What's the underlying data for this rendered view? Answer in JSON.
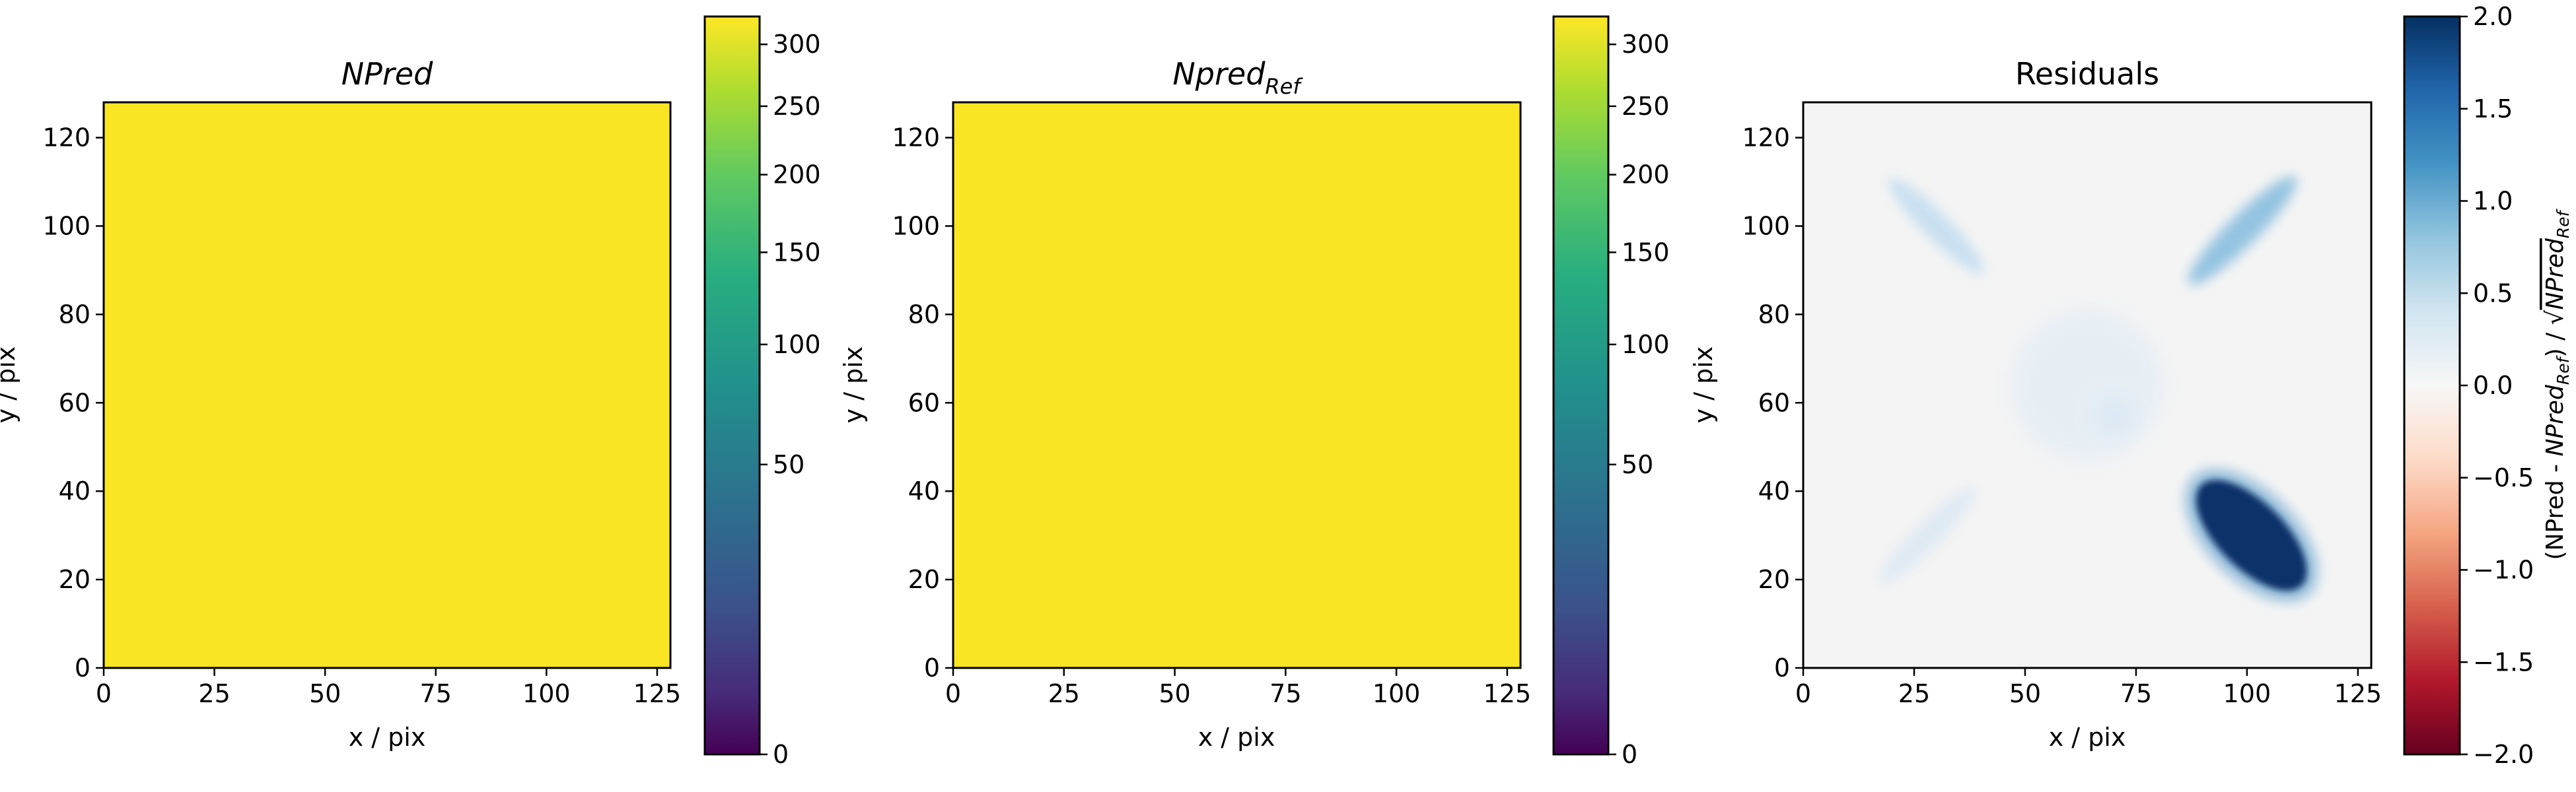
{
  "figure": {
    "background": "#ffffff"
  },
  "chart_data": [
    {
      "type": "heatmap",
      "title": "NPred",
      "xlabel": "x / pix",
      "ylabel": "y / pix",
      "xlim": [
        0,
        128
      ],
      "ylim": [
        0,
        128
      ],
      "xticks": [
        0,
        25,
        50,
        75,
        100,
        125
      ],
      "yticks": [
        0,
        20,
        40,
        60,
        80,
        100,
        120
      ],
      "colormap": "viridis",
      "fill_color": "#f9e521",
      "colorbar": {
        "scale": "sqrt",
        "range": [
          0,
          324
        ],
        "ticks": [
          0,
          50,
          100,
          150,
          200,
          250,
          300
        ],
        "label": ""
      }
    },
    {
      "type": "heatmap",
      "title": "Npred",
      "title_subscript": "Ref",
      "xlabel": "x / pix",
      "ylabel": "y / pix",
      "xlim": [
        0,
        128
      ],
      "ylim": [
        0,
        128
      ],
      "xticks": [
        0,
        25,
        50,
        75,
        100,
        125
      ],
      "yticks": [
        0,
        20,
        40,
        60,
        80,
        100,
        120
      ],
      "colormap": "viridis",
      "fill_color": "#f9e521",
      "colorbar": {
        "scale": "sqrt",
        "range": [
          0,
          324
        ],
        "ticks": [
          0,
          50,
          100,
          150,
          200,
          250,
          300
        ],
        "label": ""
      }
    },
    {
      "type": "heatmap",
      "title": "Residuals",
      "xlabel": "x / pix",
      "ylabel": "y / pix",
      "xlim": [
        0,
        128
      ],
      "ylim": [
        0,
        128
      ],
      "xticks": [
        0,
        25,
        50,
        75,
        100,
        125
      ],
      "yticks": [
        0,
        20,
        40,
        60,
        80,
        100,
        120
      ],
      "colormap": "RdBu",
      "background_color": "#f4f4f4",
      "features": [
        {
          "shape": "ellipse",
          "cx": 101,
          "cy": 30,
          "length": 32,
          "width": 15,
          "angle_deg": -45,
          "value": 2.0,
          "color": "#08306b"
        },
        {
          "shape": "ellipse",
          "cx": 99,
          "cy": 99,
          "length": 34,
          "width": 7,
          "angle_deg": 45,
          "value": 0.7,
          "color": "#8ec1e0"
        },
        {
          "shape": "ellipse",
          "cx": 30,
          "cy": 100,
          "length": 30,
          "width": 6,
          "angle_deg": -45,
          "value": 0.3,
          "color": "#c6def0"
        },
        {
          "shape": "ellipse",
          "cx": 28,
          "cy": 30,
          "length": 30,
          "width": 6,
          "angle_deg": 45,
          "value": 0.15,
          "color": "#dde9f3"
        },
        {
          "shape": "ellipse",
          "cx": 64,
          "cy": 64,
          "length": 34,
          "width": 34,
          "angle_deg": 0,
          "value": 0.1,
          "color": "#e6eef5"
        },
        {
          "shape": "ellipse",
          "cx": 70,
          "cy": 57,
          "length": 9,
          "width": 9,
          "angle_deg": 0,
          "value": 0.15,
          "color": "#dce9f4"
        }
      ],
      "colorbar": {
        "scale": "linear",
        "range": [
          -2.0,
          2.0
        ],
        "ticks": [
          -2.0,
          -1.5,
          -1.0,
          -0.5,
          0.0,
          0.5,
          1.0,
          1.5,
          2.0
        ],
        "tick_labels": [
          "−2.0",
          "−1.5",
          "−1.0",
          "−0.5",
          "0.0",
          "0.5",
          "1.0",
          "1.5",
          "2.0"
        ],
        "label": "(NPred - NPred_Ref) / √NPred_Ref",
        "label_parts": [
          "(NPred - ",
          "NPred",
          "Ref",
          ") / √",
          "NPred",
          "Ref"
        ]
      }
    }
  ]
}
